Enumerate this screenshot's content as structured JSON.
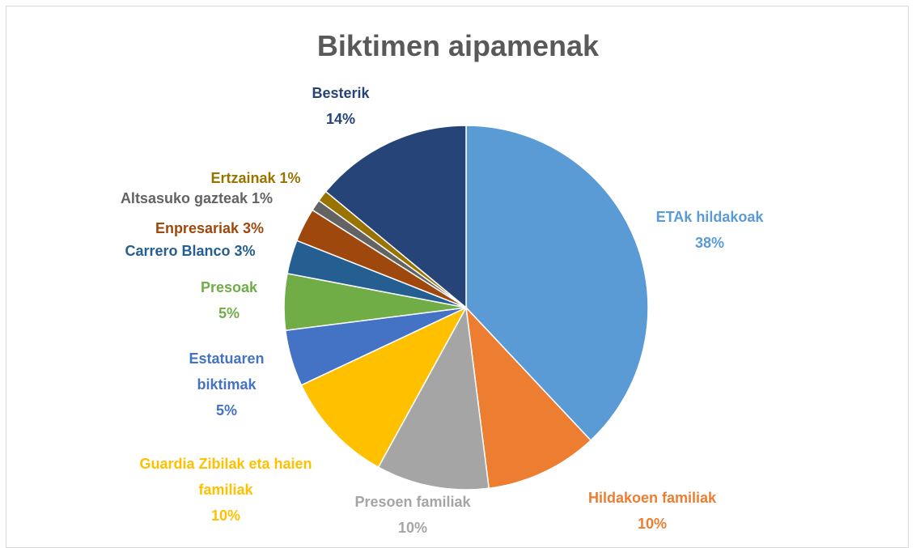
{
  "chart_data": {
    "type": "pie",
    "title": "Biktimen aipamenak",
    "categories": [
      "ETAk hildakoak",
      "Hildakoen familiak",
      "Presoen familiak",
      "Guardia Zibilak eta haien familiak",
      "Estatuaren biktimak",
      "Presoak",
      "Carrero Blanco",
      "Enpresariak",
      "Altsasuko gazteak",
      "Ertzainak",
      "Besterik"
    ],
    "values": [
      38,
      10,
      10,
      10,
      5,
      5,
      3,
      3,
      1,
      1,
      14
    ],
    "value_labels": [
      "38%",
      "10%",
      "10%",
      "10%",
      "5%",
      "5%",
      "3%",
      "3%",
      "1%",
      "1%",
      "14%"
    ],
    "colors": [
      "#5b9bd5",
      "#ed7d31",
      "#a5a5a5",
      "#ffc000",
      "#4472c4",
      "#70ad47",
      "#255e91",
      "#9e480e",
      "#636363",
      "#997300",
      "#264478"
    ]
  }
}
